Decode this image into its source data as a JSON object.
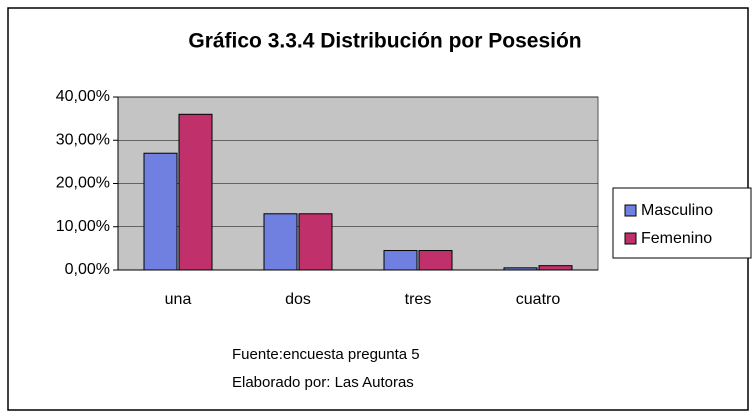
{
  "chart_data": {
    "type": "bar",
    "title": "Gráfico 3.3.4 Distribución por Posesión",
    "categories": [
      "una",
      "dos",
      "tres",
      "cuatro"
    ],
    "series": [
      {
        "name": "Masculino",
        "color": "#7080e0",
        "values": [
          27,
          13,
          4.5,
          0.5
        ]
      },
      {
        "name": "Femenino",
        "color": "#c0306a",
        "values": [
          36,
          13,
          4.5,
          1
        ]
      }
    ],
    "ylim": [
      0,
      40
    ],
    "yticks": [
      {
        "value": 0,
        "label": "0,00%"
      },
      {
        "value": 10,
        "label": "10,00%"
      },
      {
        "value": 20,
        "label": "20,00%"
      },
      {
        "value": 30,
        "label": "30,00%"
      },
      {
        "value": 40,
        "label": "40,00%"
      }
    ],
    "grid": true,
    "legend": "right",
    "annotations": [
      "Fuente:encuesta pregunta 5",
      "Elaborado por: Las Autoras"
    ]
  }
}
